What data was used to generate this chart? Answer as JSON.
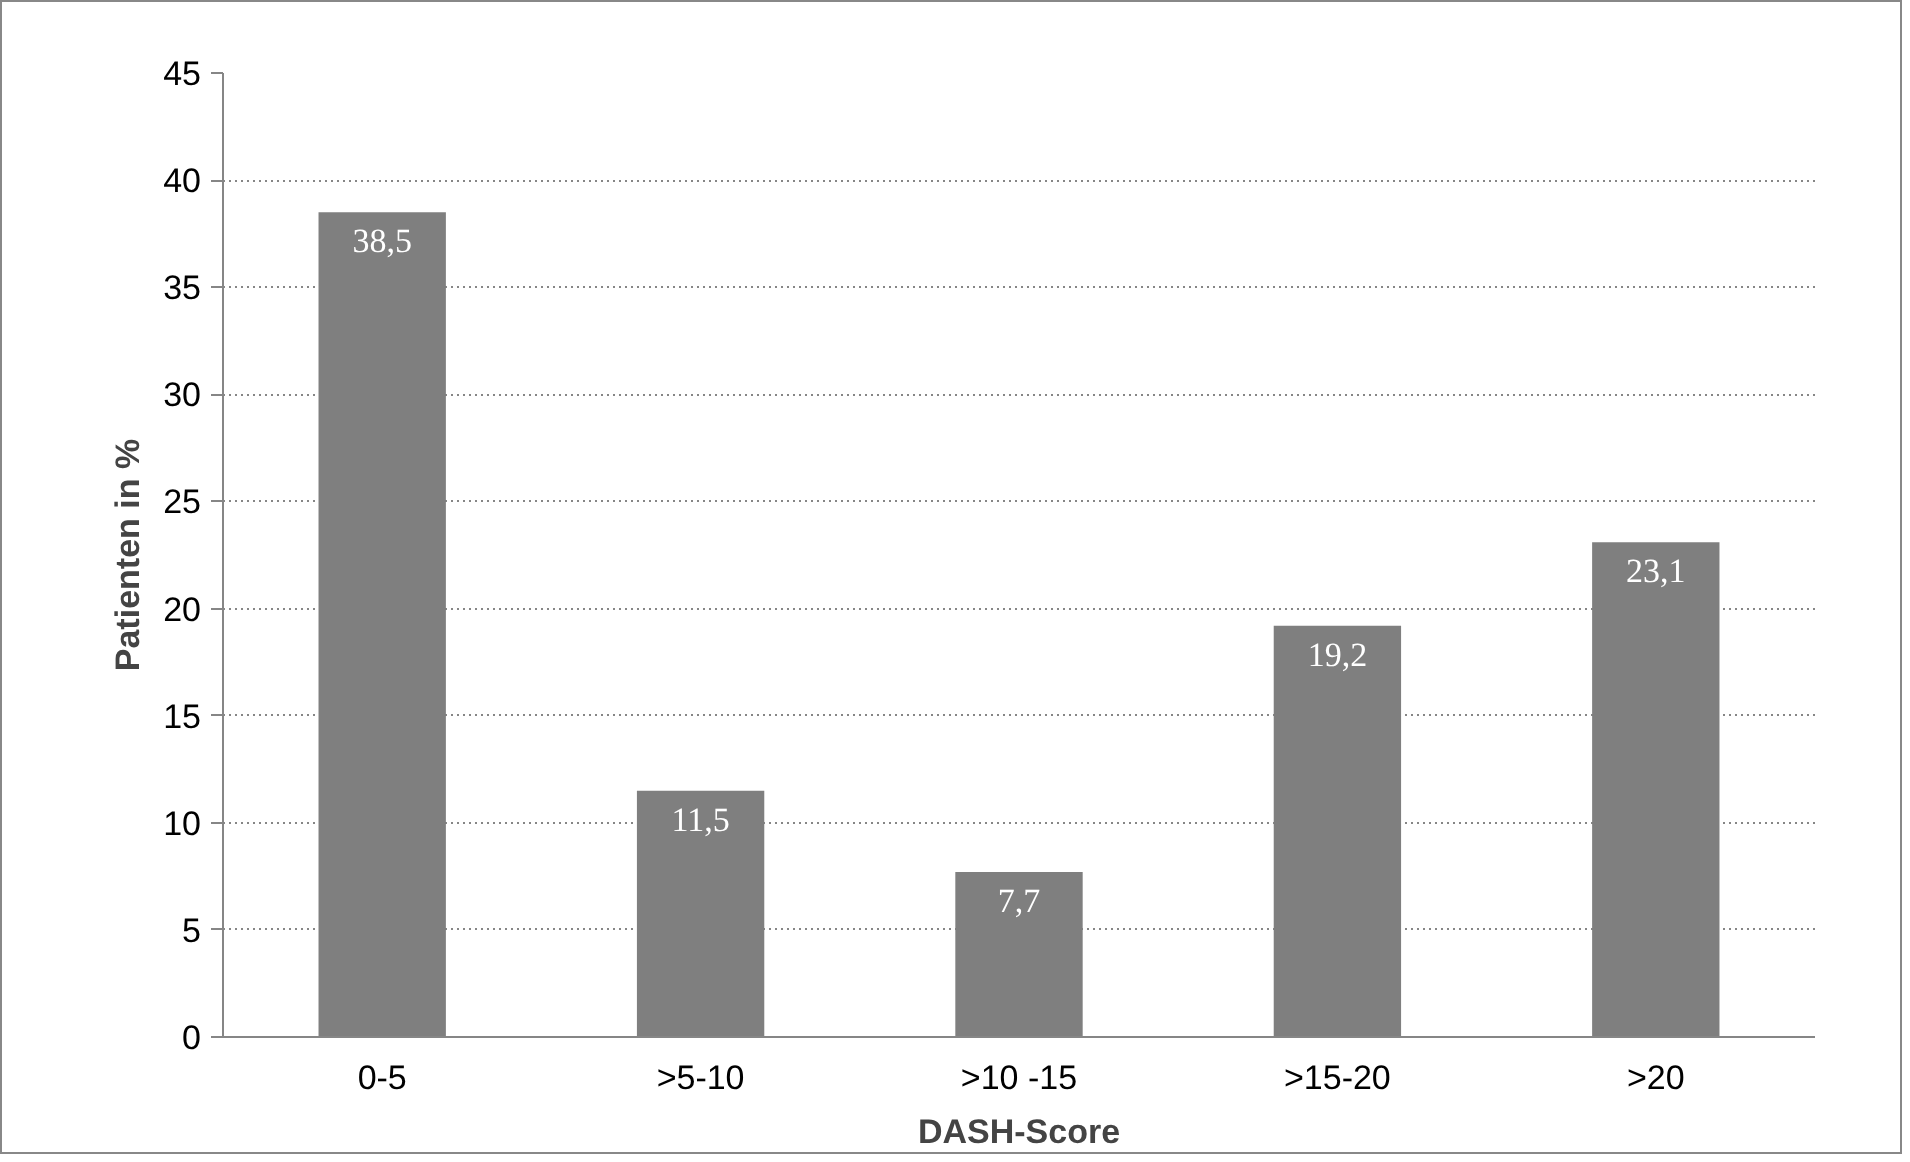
{
  "chart_data": {
    "type": "bar",
    "xlabel": "DASH-Score",
    "ylabel": "Patienten in %",
    "categories": [
      "0-5",
      ">5-10",
      ">10 -15",
      ">15-20",
      ">20"
    ],
    "values": [
      38.5,
      11.5,
      7.7,
      19.2,
      23.1
    ],
    "value_labels": [
      "38,5",
      "11,5",
      "7,7",
      "19,2",
      "23,1"
    ],
    "color": "#7f7f7f",
    "ylim": [
      0,
      45
    ],
    "yticks": [
      0,
      5,
      10,
      15,
      20,
      25,
      30,
      35,
      40,
      45
    ],
    "grid": "y"
  }
}
